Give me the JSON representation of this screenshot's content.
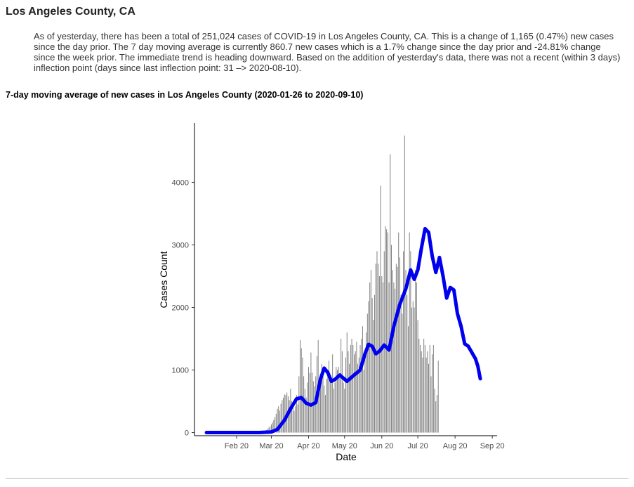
{
  "page": {
    "title": "Los Angeles County, CA",
    "summary": "As of yesterday, there has been a total of 251,024 cases of COVID-19 in Los Angeles County, CA. This is a change of 1,165 (0.47%) new cases since the day prior. The 7 day moving average is currently 860.7 new cases which is a 1.7% change since the day prior and -24.81% change since the week prior. The immediate trend is heading downward. Based on the addition of yesterday's data, there was not a recent (within 3 days) inflection point (days since last inflection point: 31 –> 2020-08-10)."
  },
  "chart_data": {
    "type": "bar",
    "title": "7-day moving average of new cases in Los Angeles County (2020-01-26 to 2020-09-10)",
    "xlabel": "Date",
    "ylabel": "Cases Count",
    "x_range": [
      "2020-01-26",
      "2020-09-10"
    ],
    "ylim": [
      -50,
      4950
    ],
    "y_ticks": [
      0,
      1000,
      2000,
      3000,
      4000
    ],
    "x_ticks": [
      {
        "date": "2020-02-20",
        "label": "Feb 20"
      },
      {
        "date": "2020-03-20",
        "label": "Mar 20"
      },
      {
        "date": "2020-04-20",
        "label": "Apr 20"
      },
      {
        "date": "2020-05-20",
        "label": "May 20"
      },
      {
        "date": "2020-06-20",
        "label": "Jun 20"
      },
      {
        "date": "2020-07-20",
        "label": "Jul 20"
      },
      {
        "date": "2020-08-20",
        "label": "Aug 20"
      },
      {
        "date": "2020-09-20",
        "label": "Sep 20"
      }
    ],
    "grid": false,
    "bar_color": "#7a7a7a",
    "line_color": "#0000ee",
    "series": [
      {
        "values_key": "daily_cases",
        "bars": {
          "start_date": "2020-01-26",
          "step_days": 1,
          "values": [
            0,
            0,
            0,
            0,
            0,
            0,
            0,
            0,
            0,
            0,
            0,
            0,
            0,
            0,
            0,
            0,
            0,
            0,
            0,
            0,
            0,
            0,
            0,
            0,
            0,
            0,
            0,
            0,
            0,
            0,
            0,
            0,
            0,
            0,
            0,
            0,
            0,
            0,
            0,
            0,
            0,
            0,
            1,
            3,
            5,
            8,
            12,
            18,
            25,
            30,
            40,
            60,
            80,
            100,
            130,
            160,
            200,
            250,
            300,
            380,
            420,
            350,
            460,
            520,
            560,
            610,
            600,
            640,
            580,
            520,
            700,
            500,
            400,
            350,
            420,
            600,
            450,
            900,
            1480,
            1350,
            1200,
            900,
            700,
            560,
            800,
            1050,
            950,
            1280,
            960,
            820,
            740,
            900,
            1220,
            1480,
            750,
            800,
            1100,
            1030,
            750,
            600,
            860,
            1000,
            1150,
            900,
            850,
            1250,
            700,
            800,
            1050,
            1000,
            1050,
            950,
            1500,
            1300,
            800,
            700,
            1200,
            1600,
            1300,
            1100,
            1400,
            1500,
            1400,
            1250,
            1300,
            1450,
            1100,
            1200,
            1400,
            1500,
            1700,
            1000,
            1300,
            1600,
            1900,
            2100,
            2400,
            2600,
            2150,
            1800,
            2200,
            2700,
            2900,
            2700,
            2500,
            3950,
            2500,
            2400,
            2900,
            3300,
            3250,
            3200,
            2400,
            4450,
            3000,
            2600,
            2400,
            2300,
            2700,
            2650,
            3200,
            2800,
            2200,
            1900,
            2900,
            4750,
            2600,
            2200,
            1700,
            3200,
            2900,
            2000,
            2100,
            2000,
            2600,
            2400,
            1800,
            1500,
            1400,
            1300,
            1200,
            1500,
            1400,
            1200,
            1300,
            1100,
            1400,
            900,
            1250,
            1400,
            700,
            500,
            600,
            1150
          ]
        }
      },
      {
        "values_key": "moving_average",
        "line": {
          "points": [
            {
              "date": "2020-01-26",
              "y": 0
            },
            {
              "date": "2020-03-10",
              "y": 0
            },
            {
              "date": "2020-03-20",
              "y": 10
            },
            {
              "date": "2020-03-25",
              "y": 50
            },
            {
              "date": "2020-03-31",
              "y": 200
            },
            {
              "date": "2020-04-05",
              "y": 380
            },
            {
              "date": "2020-04-10",
              "y": 540
            },
            {
              "date": "2020-04-14",
              "y": 560
            },
            {
              "date": "2020-04-18",
              "y": 470
            },
            {
              "date": "2020-04-22",
              "y": 440
            },
            {
              "date": "2020-04-26",
              "y": 480
            },
            {
              "date": "2020-04-30",
              "y": 860
            },
            {
              "date": "2020-05-03",
              "y": 1030
            },
            {
              "date": "2020-05-06",
              "y": 960
            },
            {
              "date": "2020-05-09",
              "y": 820
            },
            {
              "date": "2020-05-12",
              "y": 850
            },
            {
              "date": "2020-05-16",
              "y": 920
            },
            {
              "date": "2020-05-19",
              "y": 870
            },
            {
              "date": "2020-05-22",
              "y": 820
            },
            {
              "date": "2020-05-28",
              "y": 920
            },
            {
              "date": "2020-06-02",
              "y": 1000
            },
            {
              "date": "2020-06-06",
              "y": 1260
            },
            {
              "date": "2020-06-09",
              "y": 1410
            },
            {
              "date": "2020-06-12",
              "y": 1380
            },
            {
              "date": "2020-06-15",
              "y": 1260
            },
            {
              "date": "2020-06-18",
              "y": 1300
            },
            {
              "date": "2020-06-22",
              "y": 1400
            },
            {
              "date": "2020-06-26",
              "y": 1320
            },
            {
              "date": "2020-06-30",
              "y": 1700
            },
            {
              "date": "2020-07-05",
              "y": 2050
            },
            {
              "date": "2020-07-10",
              "y": 2300
            },
            {
              "date": "2020-07-14",
              "y": 2600
            },
            {
              "date": "2020-07-17",
              "y": 2450
            },
            {
              "date": "2020-07-20",
              "y": 2600
            },
            {
              "date": "2020-07-23",
              "y": 2950
            },
            {
              "date": "2020-07-26",
              "y": 3260
            },
            {
              "date": "2020-07-29",
              "y": 3200
            },
            {
              "date": "2020-08-01",
              "y": 2820
            },
            {
              "date": "2020-08-04",
              "y": 2560
            },
            {
              "date": "2020-08-07",
              "y": 2800
            },
            {
              "date": "2020-08-10",
              "y": 2500
            },
            {
              "date": "2020-08-13",
              "y": 2150
            },
            {
              "date": "2020-08-16",
              "y": 2320
            },
            {
              "date": "2020-08-19",
              "y": 2280
            },
            {
              "date": "2020-08-22",
              "y": 1900
            },
            {
              "date": "2020-08-25",
              "y": 1700
            },
            {
              "date": "2020-08-28",
              "y": 1420
            },
            {
              "date": "2020-08-31",
              "y": 1380
            },
            {
              "date": "2020-09-03",
              "y": 1280
            },
            {
              "date": "2020-09-06",
              "y": 1180
            },
            {
              "date": "2020-09-08",
              "y": 1060
            },
            {
              "date": "2020-09-10",
              "y": 861
            }
          ]
        }
      }
    ]
  }
}
